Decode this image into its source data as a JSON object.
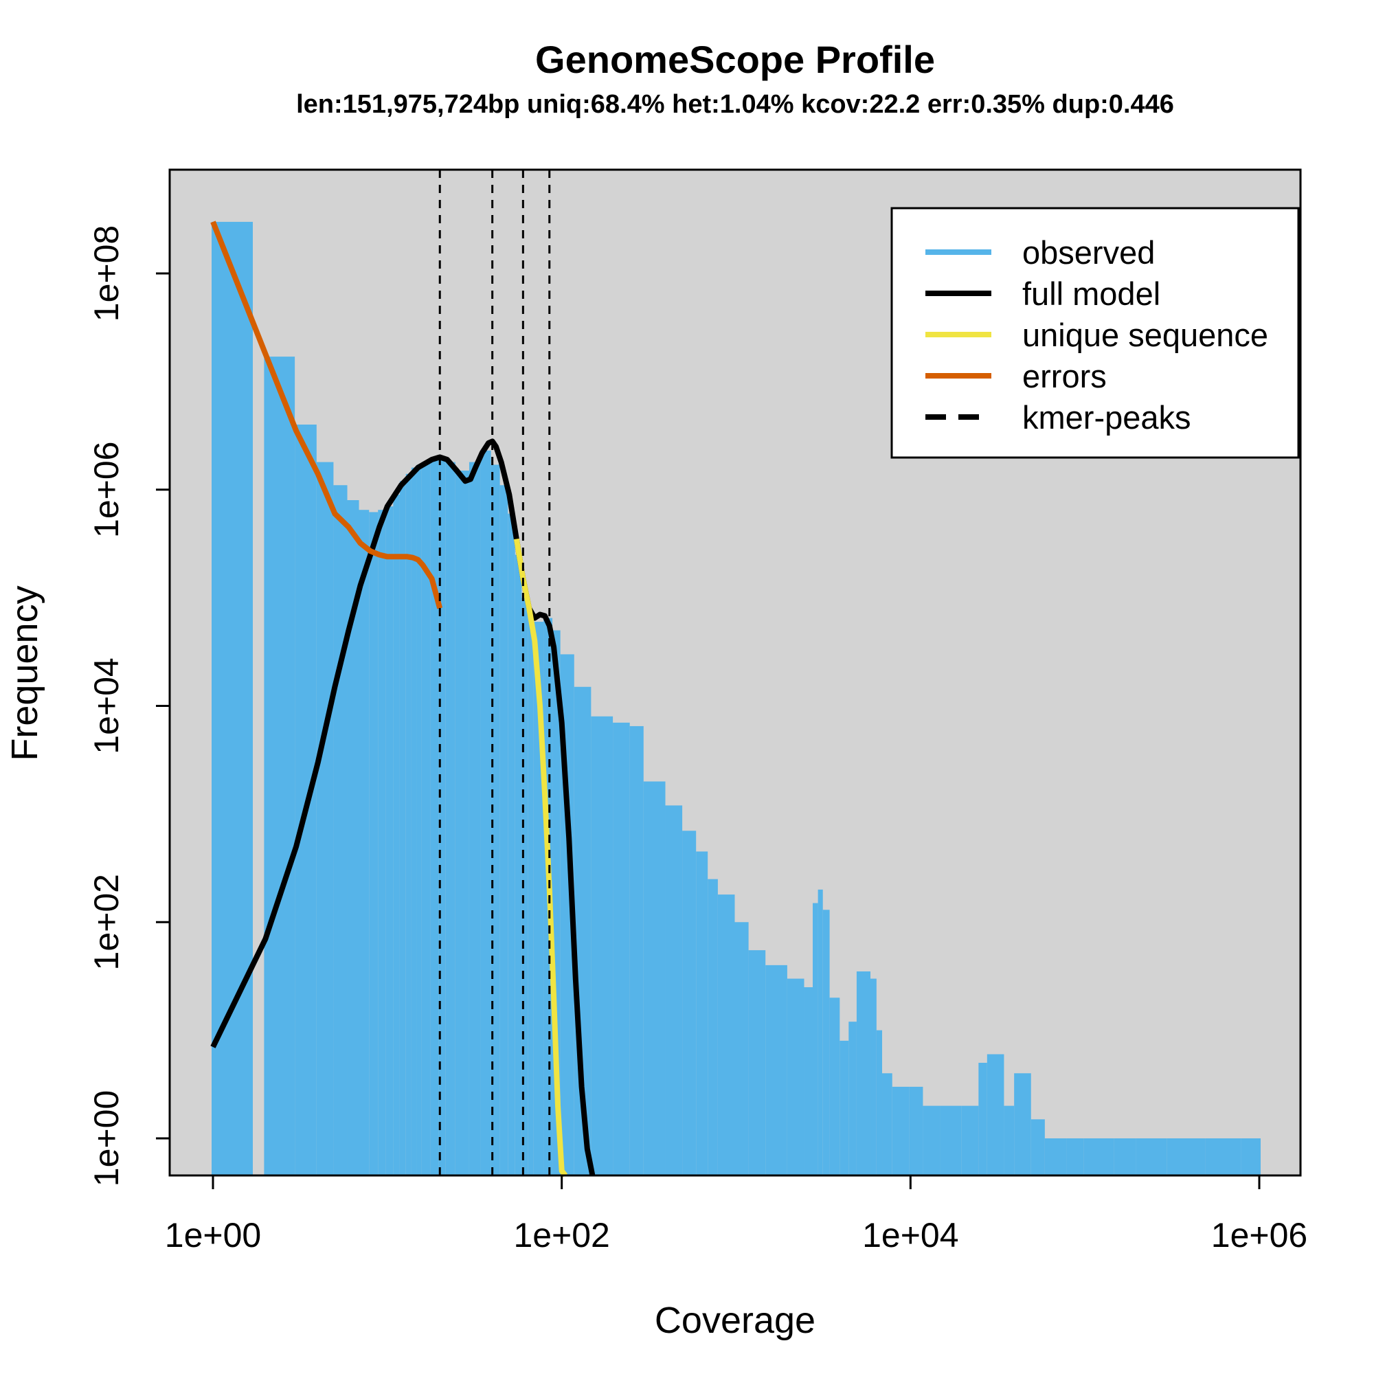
{
  "chart_data": {
    "type": "area",
    "title": "GenomeScope Profile",
    "subtitle": "len:151,975,724bp uniq:68.4% het:1.04% kcov:22.2 err:0.35% dup:0.446",
    "xlabel": "Coverage",
    "ylabel": "Frequency",
    "xscale": "log",
    "yscale": "log",
    "xlim": [
      1,
      1000000
    ],
    "ylim": [
      0.45,
      1000000000
    ],
    "x_ticks": [
      1,
      100,
      10000,
      1000000
    ],
    "x_tick_labels": [
      "1e+00",
      "1e+02",
      "1e+04",
      "1e+06"
    ],
    "y_ticks": [
      1,
      100,
      10000,
      1000000,
      100000000
    ],
    "y_tick_labels": [
      "1e+00",
      "1e+02",
      "1e+04",
      "1e+06",
      "1e+08"
    ],
    "grid": false,
    "background": "#d3d3d3",
    "legend_position": "top-right",
    "legend": [
      {
        "label": "observed",
        "color": "#56b4e9",
        "style": "solid"
      },
      {
        "label": "full model",
        "color": "#000000",
        "style": "solid"
      },
      {
        "label": "unique sequence",
        "color": "#f0e442",
        "style": "solid"
      },
      {
        "label": "errors",
        "color": "#d55e00",
        "style": "solid"
      },
      {
        "label": "kmer-peaks",
        "color": "#000000",
        "style": "dashed"
      }
    ],
    "series": [
      {
        "name": "observed",
        "color": "#56b4e9",
        "style": "bars",
        "x": [
          1,
          2,
          3,
          4,
          5,
          6,
          7,
          8,
          9,
          10,
          11,
          12,
          13,
          14,
          15,
          16,
          18,
          20,
          22,
          25,
          30,
          35,
          40,
          45,
          50,
          55,
          60,
          65,
          70,
          80,
          90,
          100,
          120,
          150,
          200,
          250,
          300,
          400,
          500,
          600,
          700,
          800,
          1000,
          1200,
          1500,
          2000,
          2500,
          2800,
          3000,
          3200,
          3500,
          4000,
          4500,
          5000,
          6000,
          6500,
          7000,
          8000,
          10000,
          12000,
          15000,
          20000,
          25000,
          28000,
          35000,
          40000,
          50000,
          60000,
          80000,
          100000,
          150000,
          200000,
          300000,
          500000,
          800000,
          1000000
        ],
        "y": [
          300000000,
          17000000,
          4000000,
          1800000,
          1100000,
          800000,
          650000,
          620000,
          650000,
          700000,
          900000,
          1200000,
          1400000,
          1600000,
          1700000,
          1800000,
          1900000,
          2000000,
          1800000,
          1500000,
          1800000,
          2300000,
          1700000,
          1100000,
          600000,
          250000,
          100000,
          70000,
          60000,
          65000,
          50000,
          30000,
          15000,
          8000,
          7000,
          6500,
          2000,
          1200,
          700,
          450,
          250,
          180,
          100,
          55,
          40,
          30,
          25,
          150,
          200,
          130,
          20,
          8,
          12,
          35,
          30,
          10,
          4,
          3,
          3,
          2,
          2,
          2,
          5,
          6,
          2,
          4,
          1.5,
          1,
          1,
          1,
          1,
          1,
          1,
          1,
          1,
          1
        ]
      },
      {
        "name": "full model",
        "color": "#000000",
        "style": "solid",
        "x": [
          1,
          2,
          3,
          4,
          5,
          6,
          7,
          8,
          9,
          10,
          12,
          15,
          18,
          20,
          22,
          25,
          28,
          30,
          32,
          35,
          38,
          40,
          42,
          45,
          50,
          55,
          60,
          65,
          70,
          75,
          80,
          85,
          90,
          100,
          110,
          120,
          130,
          140,
          150
        ],
        "y": [
          7,
          70,
          500,
          3000,
          15000,
          50000,
          130000,
          250000,
          450000,
          700000,
          1100000,
          1600000,
          1900000,
          2000000,
          1900000,
          1500000,
          1200000,
          1250000,
          1600000,
          2200000,
          2700000,
          2800000,
          2500000,
          1800000,
          900000,
          350000,
          150000,
          80000,
          65000,
          70000,
          68000,
          55000,
          35000,
          7000,
          600,
          30,
          3,
          0.8,
          0.4
        ]
      },
      {
        "name": "unique sequence",
        "color": "#f0e442",
        "style": "solid",
        "x": [
          55,
          60,
          65,
          70,
          75,
          80,
          85,
          90,
          95,
          100,
          105
        ],
        "y": [
          350000,
          150000,
          80000,
          40000,
          10000,
          1500,
          200,
          20,
          2,
          0.5,
          0.3
        ]
      },
      {
        "name": "errors",
        "color": "#d55e00",
        "style": "solid",
        "x": [
          1,
          2,
          3,
          4,
          5,
          6,
          7,
          8,
          9,
          10,
          11,
          12,
          13,
          14,
          15,
          16,
          18,
          20
        ],
        "y": [
          300000000,
          18000000,
          3500000,
          1400000,
          600000,
          450000,
          320000,
          270000,
          250000,
          240000,
          240000,
          240000,
          240000,
          235000,
          225000,
          200000,
          150000,
          80000
        ]
      }
    ],
    "kmer_peaks": [
      20,
      40,
      60,
      85
    ]
  }
}
